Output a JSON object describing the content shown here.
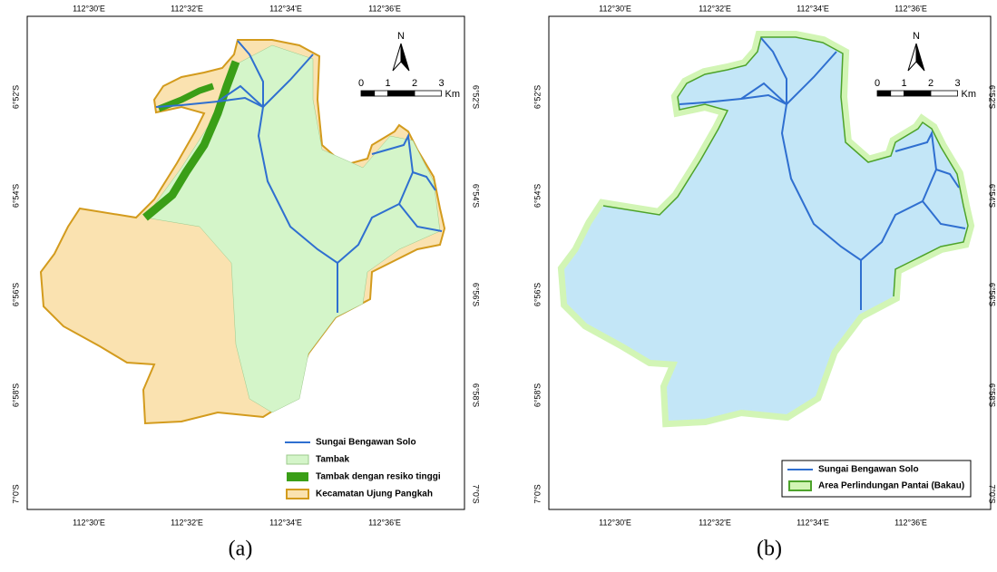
{
  "panels": [
    {
      "caption": "(a)",
      "top_labels": [
        "112°30'E",
        "112°32'E",
        "112°34'E",
        "112°36'E"
      ],
      "bottom_labels": [
        "112°30'E",
        "112°32'E",
        "112°34'E",
        "112°36'E"
      ],
      "left_labels": [
        "6°52'S",
        "6°54'S",
        "6°56'S",
        "6°58'S",
        "7°0'S"
      ],
      "right_labels": [
        "6°52'S",
        "6°54'S",
        "6°56'S",
        "6°58'S",
        "7°0'S"
      ],
      "north": "N",
      "scale_labels": [
        "0",
        "1",
        "2",
        "3"
      ],
      "scale_unit": "Km",
      "legend": [
        "Sungai Bengawan Solo",
        "Tambak",
        "Tambak dengan resiko tinggi",
        "Kecamatan Ujung Pangkah"
      ]
    },
    {
      "caption": "(b)",
      "top_labels": [
        "112°30'E",
        "112°32'E",
        "112°34'E",
        "112°36'E"
      ],
      "bottom_labels": [
        "112°30'E",
        "112°32'E",
        "112°34'E",
        "112°36'E"
      ],
      "left_labels": [
        "6°52'S",
        "6°54'S",
        "6°56'S",
        "6°58'S",
        "7°0'S"
      ],
      "right_labels": [
        "6°52'S",
        "6°54'S",
        "6°56'S",
        "6°58'S",
        "7°0'S"
      ],
      "north": "N",
      "scale_labels": [
        "0",
        "1",
        "2",
        "3"
      ],
      "scale_unit": "Km",
      "legend": [
        "Sungai Bengawan Solo",
        "Area Perlindungan Pantai (Bakau)"
      ]
    }
  ]
}
